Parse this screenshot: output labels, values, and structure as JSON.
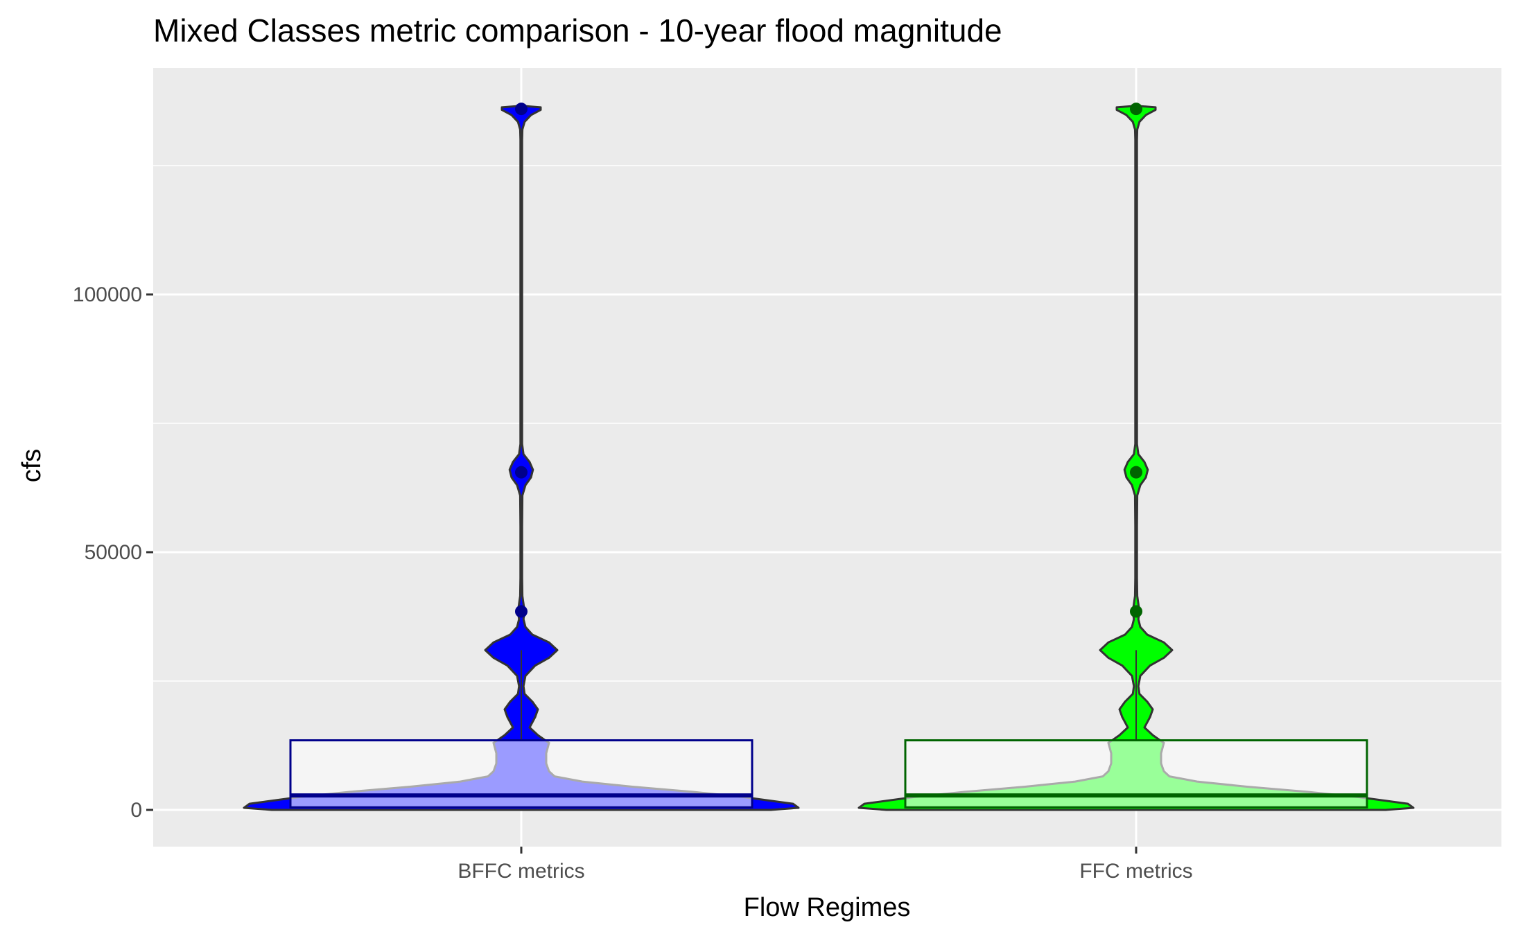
{
  "chart_data": {
    "type": "violin",
    "title": "Mixed Classes metric comparison - 10-year flood magnitude",
    "xlabel": "Flow Regimes",
    "ylabel": "cfs",
    "ylim": [
      -7000,
      144000
    ],
    "y_ticks": [
      0,
      50000,
      100000
    ],
    "y_tick_labels": [
      "0",
      "50000",
      "100000"
    ],
    "grid": true,
    "categories": [
      "BFFC metrics",
      "FFC metrics"
    ],
    "series": [
      {
        "category": "BFFC metrics",
        "fill_color": "#0000ff",
        "box_fill": "#f5f5f5",
        "box_border": "#00008b",
        "inner_violin_fill": "#9b9bff",
        "point_color": "#00008b",
        "box": {
          "q1": 500,
          "median": 2800,
          "q3": 13500,
          "whisker_high": 31000
        },
        "points": [
          136000,
          65500,
          38500
        ]
      },
      {
        "category": "FFC metrics",
        "fill_color": "#00ff00",
        "box_fill": "#f5f5f5",
        "box_border": "#006400",
        "inner_violin_fill": "#99ff99",
        "point_color": "#006400",
        "box": {
          "q1": 500,
          "median": 2800,
          "q3": 13500,
          "whisker_high": 31000
        },
        "points": [
          136000,
          65500,
          38500
        ]
      }
    ],
    "density_profile": [
      [
        0,
        0.9
      ],
      [
        400,
        1.0
      ],
      [
        1200,
        0.98
      ],
      [
        2500,
        0.8
      ],
      [
        3500,
        0.62
      ],
      [
        4500,
        0.4
      ],
      [
        5500,
        0.22
      ],
      [
        6500,
        0.12
      ],
      [
        7500,
        0.1
      ],
      [
        9000,
        0.09
      ],
      [
        11000,
        0.09
      ],
      [
        13000,
        0.1
      ],
      [
        14500,
        0.06
      ],
      [
        16000,
        0.03
      ],
      [
        18000,
        0.05
      ],
      [
        19500,
        0.06
      ],
      [
        21000,
        0.04
      ],
      [
        22500,
        0.012
      ],
      [
        24000,
        0.008
      ],
      [
        26000,
        0.015
      ],
      [
        28000,
        0.05
      ],
      [
        29500,
        0.1
      ],
      [
        31000,
        0.13
      ],
      [
        32500,
        0.1
      ],
      [
        34000,
        0.04
      ],
      [
        35500,
        0.015
      ],
      [
        37000,
        0.008
      ],
      [
        38500,
        0.012
      ],
      [
        40000,
        0.008
      ],
      [
        41500,
        0.004
      ],
      [
        45000,
        0.003
      ],
      [
        55000,
        0.003
      ],
      [
        61000,
        0.004
      ],
      [
        63000,
        0.015
      ],
      [
        64500,
        0.035
      ],
      [
        66000,
        0.042
      ],
      [
        67500,
        0.03
      ],
      [
        69000,
        0.008
      ],
      [
        71000,
        0.003
      ],
      [
        90000,
        0.003
      ],
      [
        120000,
        0.003
      ],
      [
        130000,
        0.003
      ],
      [
        132000,
        0.004
      ],
      [
        133500,
        0.012
      ],
      [
        134800,
        0.035
      ],
      [
        135800,
        0.07
      ],
      [
        136300,
        0.07
      ],
      [
        136600,
        0.0
      ]
    ]
  }
}
